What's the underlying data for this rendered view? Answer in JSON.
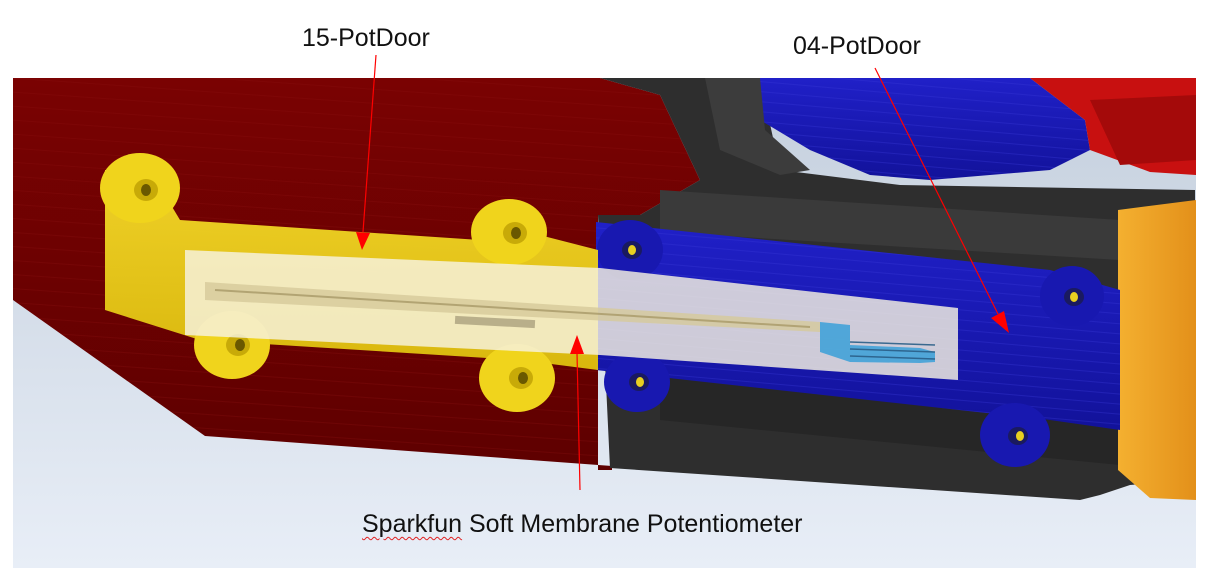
{
  "labels": {
    "part_15": "15-PotDoor",
    "part_04": "04-PotDoor",
    "sensor_word1": "Sparkfun",
    "sensor_rest": " Soft Membrane Potentiometer"
  },
  "colors": {
    "background_gradient_top": "#c9d3e0",
    "background_gradient_bottom": "#e6edf6",
    "housing_red": "#6e0000",
    "housing_red_highlight": "#8a0606",
    "part_15_yellow": "#f2d61a",
    "part_04_blue": "#1a1ab8",
    "black_part": "#2f2f2f",
    "orange_part": "#f0a020",
    "membrane_overlay": "#f5f2e0",
    "arrow_red": "#ff0000",
    "spellcheck_underline": "#e02020"
  },
  "icons": {
    "arrow_to_15": "red-arrow-icon",
    "arrow_to_04": "red-arrow-icon",
    "arrow_to_sensor": "red-arrow-icon"
  }
}
